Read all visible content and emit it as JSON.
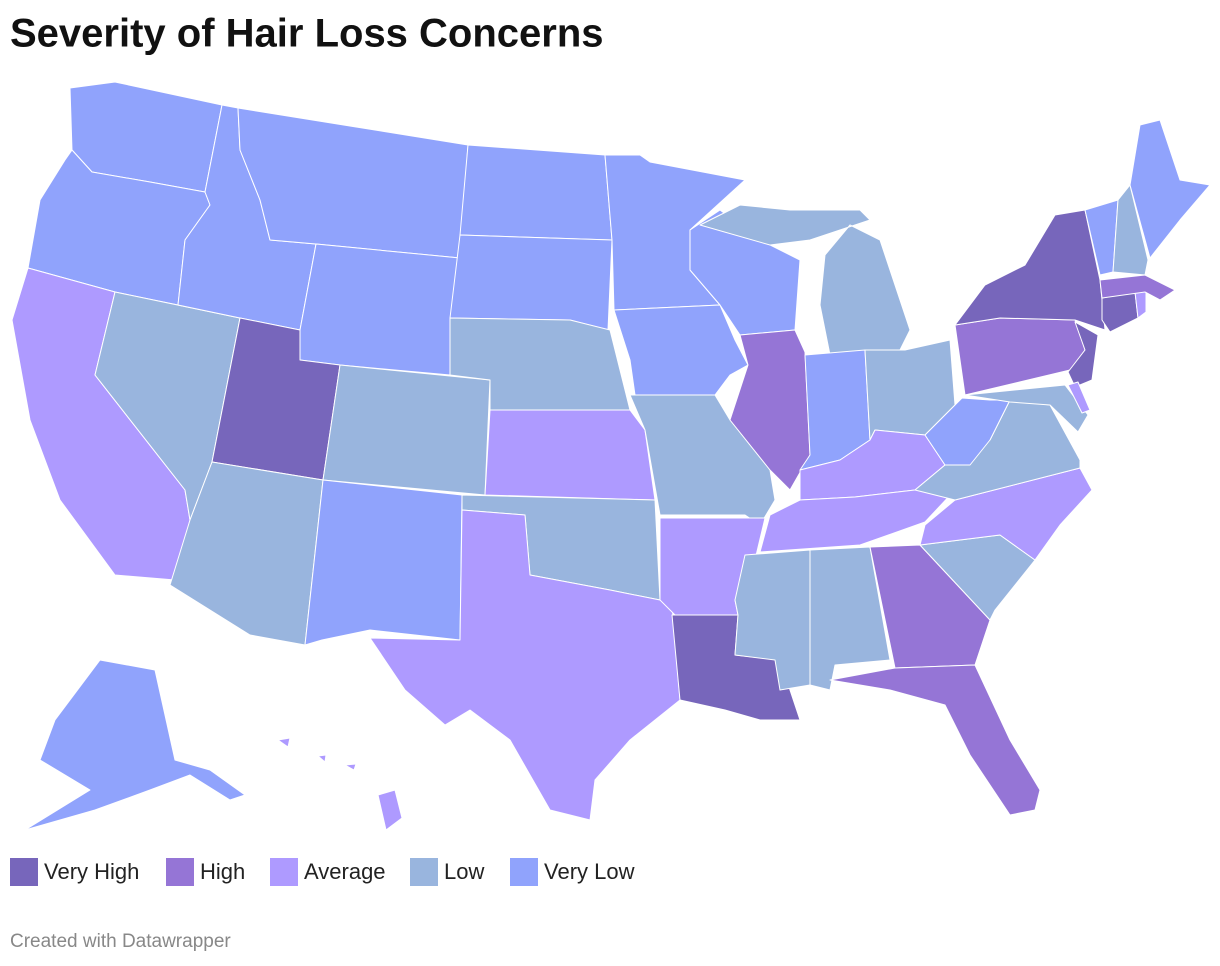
{
  "title": "Severity of Hair Loss Concerns",
  "legend": [
    {
      "label": "Very High",
      "color": "#7766bb"
    },
    {
      "label": "High",
      "color": "#9575d6"
    },
    {
      "label": "Average",
      "color": "#ae9aff"
    },
    {
      "label": "Low",
      "color": "#99b5de"
    },
    {
      "label": "Very Low",
      "color": "#90a3fc"
    }
  ],
  "region_levels": [
    4,
    4,
    2,
    3,
    4,
    4,
    4,
    0,
    3,
    3,
    4,
    4,
    4,
    3,
    2,
    3,
    2,
    4,
    4,
    3,
    2,
    0,
    4,
    1,
    3,
    4,
    3,
    2,
    2,
    3,
    3,
    1,
    1,
    3,
    2,
    3,
    4,
    1,
    0,
    0,
    3,
    2,
    0,
    2,
    1,
    4,
    3,
    4,
    4,
    2
  ],
  "footer": "Created with Datawrapper"
}
